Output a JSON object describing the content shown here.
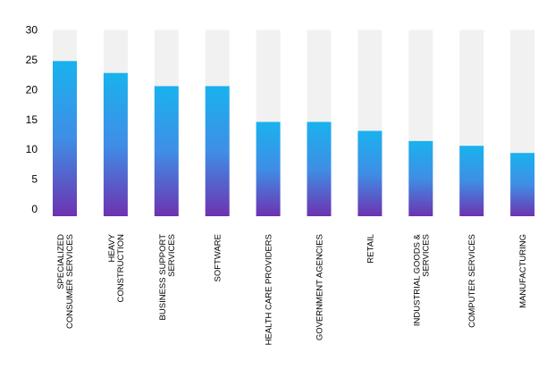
{
  "chart_data": {
    "type": "bar",
    "title": "",
    "xlabel": "",
    "ylabel": "",
    "ylim": [
      0,
      30
    ],
    "y_ticks": [
      0,
      5,
      10,
      15,
      20,
      25,
      30
    ],
    "grid": false,
    "legend": "none",
    "categories": [
      [
        "SPECIALIZED",
        "CONSUMER SERVICES"
      ],
      [
        "HEAVY",
        "CONSTRUCTION"
      ],
      [
        "BUSINESS SUPPORT",
        "SERVICES"
      ],
      [
        "SOFTWARE"
      ],
      [
        "HEALTH CARE PROVIDERS"
      ],
      [
        "GOVERNMENT AGENCIES"
      ],
      [
        "RETAIL"
      ],
      [
        "INDUSTRIAL GOODS &",
        "SERVICES"
      ],
      [
        "COMPUTER SERVICES"
      ],
      [
        "MANUFACTURING"
      ]
    ],
    "values": [
      24.8,
      22.8,
      20.6,
      20.6,
      14.6,
      14.6,
      13.1,
      11.4,
      10.6,
      9.4
    ],
    "colors": {
      "track": "#f1f1f1",
      "bar_top": "#19b2ee",
      "bar_mid": "#3f8ee6",
      "bar_bottom": "#6d33b0",
      "text": "#000000"
    }
  }
}
